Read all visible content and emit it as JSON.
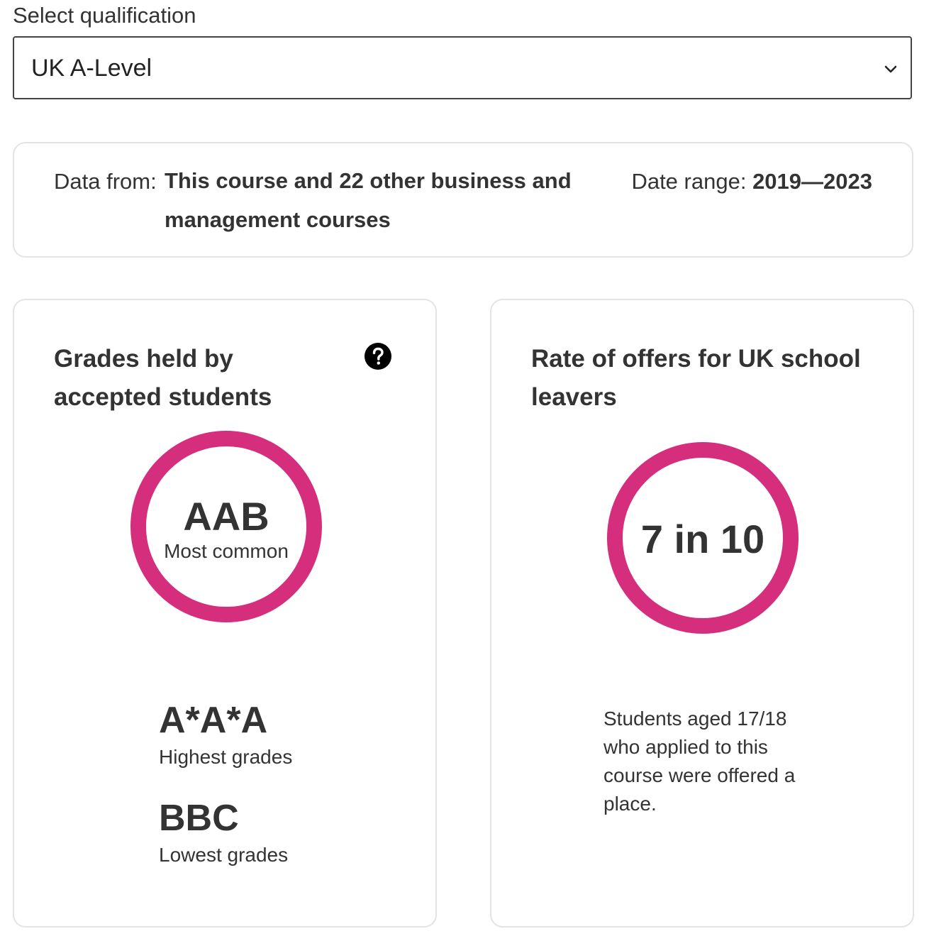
{
  "qualification": {
    "label": "Select qualification",
    "selected": "UK A-Level"
  },
  "meta": {
    "data_from_label": "Data from:",
    "data_from_value": "This course and 22 other business and management courses",
    "date_range_label": "Date range:",
    "date_range_value": "2019—2023"
  },
  "grades_card": {
    "title": "Grades held by accepted students",
    "most_common_value": "AAB",
    "most_common_label": "Most common",
    "highest_value": "A*A*A",
    "highest_label": "Highest grades",
    "lowest_value": "BBC",
    "lowest_label": "Lowest grades"
  },
  "offers_card": {
    "title": "Rate of offers for UK school leavers",
    "rate": "7 in 10",
    "description": "Students aged 17/18 who applied to this course were offered a place."
  },
  "colors": {
    "accent": "#d42e7d",
    "border": "#e3e3e3",
    "text": "#333333"
  },
  "icons": {
    "select": "chevron-down-icon",
    "help": "question-mark-icon"
  }
}
